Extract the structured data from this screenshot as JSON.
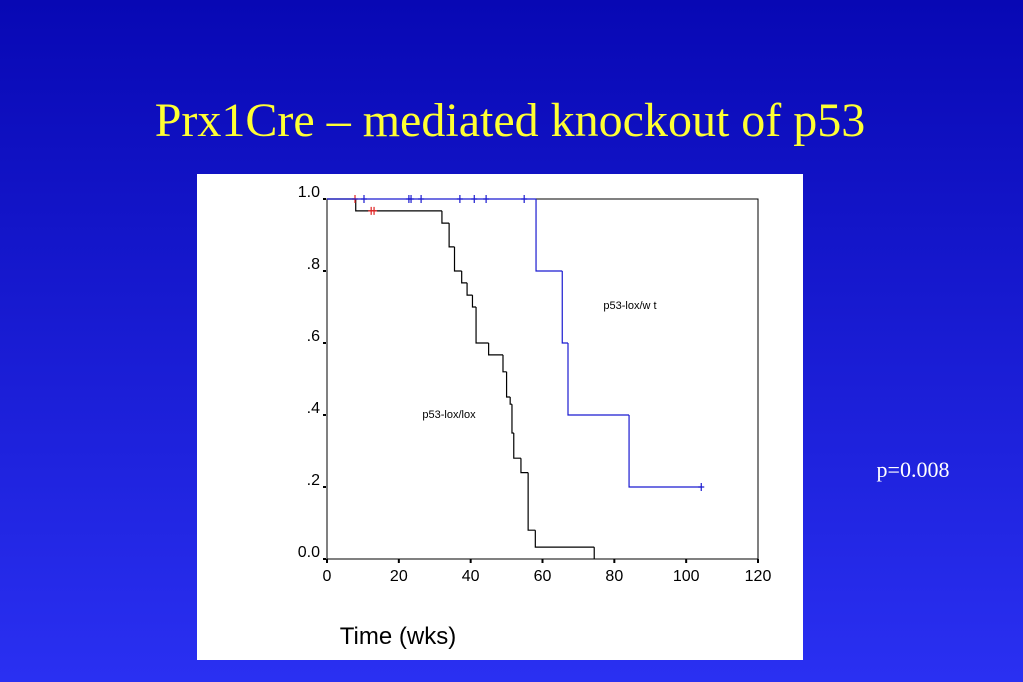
{
  "chart_data": {
    "type": "step",
    "title": "Prx1Cre – mediated knockout of p53",
    "annotation": "p=0.008",
    "x_label": "Time (wks)",
    "xlim": [
      0,
      120
    ],
    "ylim": [
      0,
      1
    ],
    "xticks": [
      0,
      20,
      40,
      60,
      80,
      100,
      120
    ],
    "yticks": [
      {
        "value": 0,
        "label": "0.0"
      },
      {
        "value": 0.2,
        "label": ".2"
      },
      {
        "value": 0.4,
        "label": ".4"
      },
      {
        "value": 0.6,
        "label": ".6"
      },
      {
        "value": 0.8,
        "label": ".8"
      },
      {
        "value": 1,
        "label": "1.0"
      }
    ],
    "series": [
      {
        "name": "p53-lox/lox",
        "color": "#000000",
        "censor_color": "#e02020",
        "x": [
          0,
          8,
          32,
          34,
          35.5,
          37.5,
          39,
          40.5,
          41.5,
          45,
          49,
          50,
          51,
          51.5,
          52,
          54,
          56,
          58,
          74.4
        ],
        "values": [
          1,
          0.967,
          0.933,
          0.867,
          0.8,
          0.767,
          0.733,
          0.7,
          0.6,
          0.567,
          0.52,
          0.45,
          0.43,
          0.35,
          0.28,
          0.24,
          0.08,
          0.033,
          0
        ],
        "censor_x": [
          7.8,
          12.3,
          13.1
        ],
        "censor_values": [
          1,
          0.967,
          0.967
        ]
      },
      {
        "name": "p53-lox/w t",
        "color": "#1a1ad0",
        "censor_color": "#1a1ad0",
        "x": [
          0,
          58.2,
          65.5,
          67.1,
          84.1
        ],
        "values": [
          1,
          0.8,
          0.6,
          0.4,
          0.2
        ],
        "censor_x": [
          10.3,
          22.8,
          23.4,
          26.2,
          37.0,
          41.0,
          44.3,
          54.9,
          104.2
        ],
        "censor_values": [
          1,
          1,
          1,
          1,
          1,
          1,
          1,
          1,
          0.2
        ]
      }
    ]
  }
}
